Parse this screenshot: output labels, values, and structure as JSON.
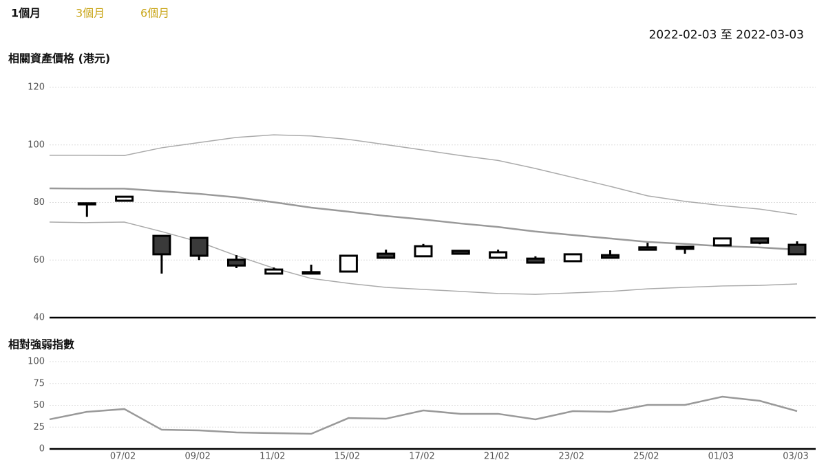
{
  "tabs": {
    "items": [
      "1個月",
      "3個月",
      "6個月"
    ],
    "active": 0
  },
  "date_range": "2022-02-03 至 2022-03-03",
  "chart_data": [
    {
      "type": "candlestick",
      "title": "相關資產價格 (港元)",
      "open": [
        null,
        79.7,
        80.6,
        68.4,
        67.7,
        60.1,
        55.3,
        55.8,
        56.0,
        62.2,
        61.3,
        63.2,
        60.8,
        60.5,
        59.6,
        61.7,
        64.4,
        64.6,
        65.1,
        67.5,
        65.3
      ],
      "high": [
        null,
        79.8,
        82.2,
        68.5,
        67.9,
        61.7,
        57.4,
        58.4,
        61.7,
        63.6,
        65.6,
        63.5,
        63.6,
        61.3,
        62.3,
        63.4,
        66.0,
        64.8,
        67.7,
        67.6,
        66.5
      ],
      "low": [
        null,
        75.0,
        80.5,
        55.3,
        60.0,
        57.2,
        55.3,
        55.2,
        56.0,
        60.8,
        61.3,
        62.0,
        60.8,
        58.9,
        59.6,
        60.8,
        63.6,
        62.2,
        65.1,
        65.5,
        62.0
      ],
      "close": [
        null,
        79.5,
        82.0,
        62.0,
        61.5,
        58.1,
        56.7,
        55.3,
        61.5,
        60.8,
        64.8,
        62.2,
        62.7,
        59.1,
        62.0,
        60.8,
        63.6,
        63.9,
        67.5,
        66.0,
        62.0
      ],
      "bands": {
        "upper": [
          96.4,
          96.4,
          96.3,
          99.0,
          100.8,
          102.6,
          103.5,
          103.1,
          101.9,
          100.1,
          98.2,
          96.3,
          94.6,
          91.8,
          88.7,
          85.6,
          82.3,
          80.4,
          78.9,
          77.7,
          75.8
        ],
        "middle": [
          84.9,
          84.8,
          84.8,
          83.9,
          83.0,
          81.8,
          80.1,
          78.2,
          76.8,
          75.3,
          74.1,
          72.7,
          71.5,
          69.9,
          68.7,
          67.5,
          66.3,
          65.6,
          64.8,
          64.4,
          63.6
        ],
        "lower": [
          73.2,
          73.0,
          73.2,
          69.9,
          66.3,
          61.5,
          57.2,
          53.6,
          51.9,
          50.5,
          49.8,
          49.1,
          48.4,
          48.1,
          48.6,
          49.1,
          50.0,
          50.5,
          51.0,
          51.2,
          51.7
        ]
      },
      "up_color": "#ffffff",
      "down_color": "#3a3a3a",
      "band_color": "#aaaaaa",
      "middle_color": "#999999",
      "ylim": [
        40,
        120
      ],
      "yticks": [
        40,
        60,
        80,
        100,
        120
      ],
      "grid": true
    },
    {
      "type": "line",
      "title": "相對強弱指數",
      "categories": [
        null,
        null,
        "07/02",
        null,
        "09/02",
        null,
        "11/02",
        null,
        "15/02",
        null,
        "17/02",
        null,
        "21/02",
        null,
        "23/02",
        null,
        "25/02",
        null,
        "01/03",
        null,
        "03/03"
      ],
      "values": [
        33.9,
        42.5,
        45.7,
        22.0,
        21.3,
        18.9,
        18.1,
        17.3,
        35.4,
        34.6,
        44.1,
        40.2,
        40.2,
        33.9,
        43.3,
        42.5,
        50.4,
        50.4,
        59.8,
        55.1,
        43.3
      ],
      "color": "#999999",
      "ylim": [
        0,
        100
      ],
      "yticks": [
        0,
        25,
        50,
        75,
        100
      ],
      "grid": true
    }
  ]
}
